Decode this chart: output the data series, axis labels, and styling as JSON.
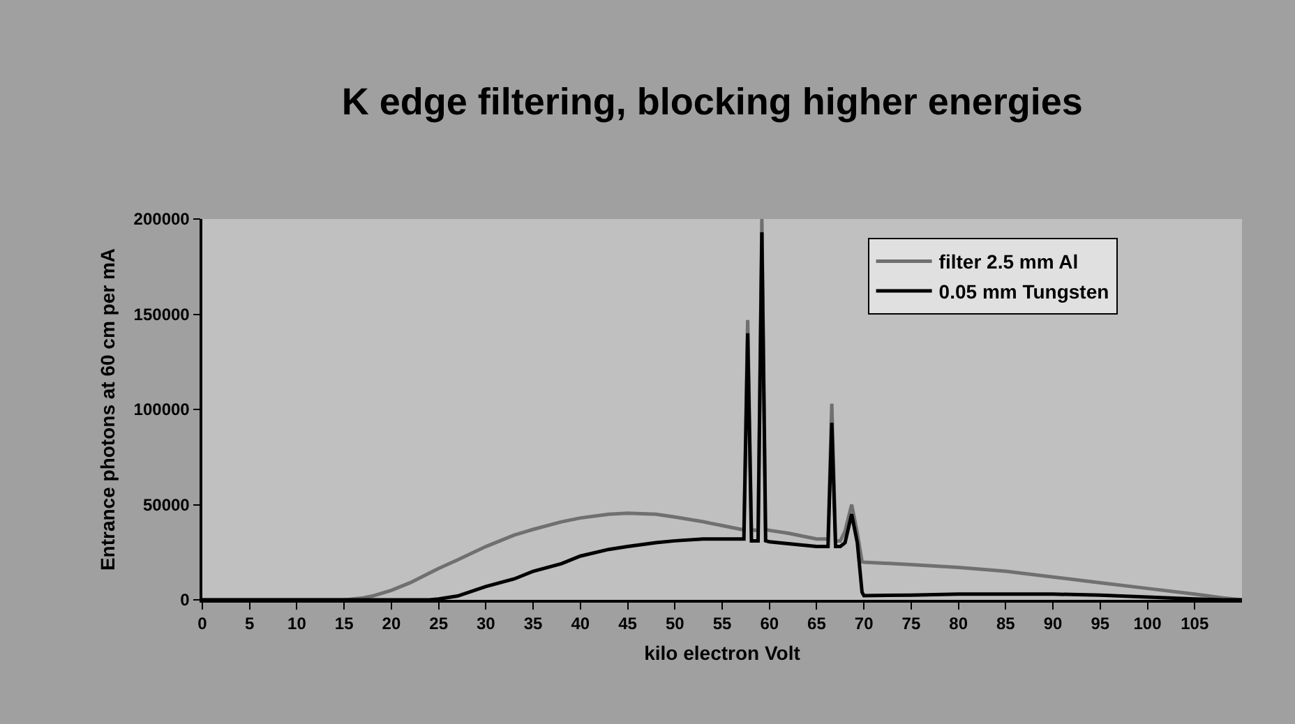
{
  "chart_data": {
    "type": "line",
    "title": "K edge filtering, blocking higher energies",
    "xlabel": "kilo electron Volt",
    "ylabel": "Entrance photons at 60 cm per mA",
    "x": [
      0,
      5,
      10,
      15,
      16,
      17,
      18,
      20,
      22,
      24,
      25,
      27,
      30,
      33,
      35,
      38,
      40,
      43,
      45,
      48,
      50,
      53,
      55,
      57,
      57.3,
      57.7,
      58.1,
      58.5,
      58.8,
      59.2,
      59.6,
      60,
      62,
      65,
      66.2,
      66.6,
      67,
      67.5,
      68,
      68.7,
      69.3,
      69.8,
      70,
      75,
      80,
      85,
      90,
      95,
      100,
      105,
      108,
      110
    ],
    "series": [
      {
        "name": "filter 2.5 mm Al",
        "color": "#707070",
        "values": [
          0,
          0,
          0,
          0,
          500,
          1000,
          2000,
          5000,
          9000,
          14000,
          16500,
          21000,
          28000,
          34000,
          37000,
          41000,
          43000,
          45000,
          45500,
          45000,
          43500,
          41000,
          39000,
          37000,
          37000,
          147000,
          37000,
          36500,
          37000,
          200000,
          37000,
          36500,
          35000,
          32000,
          32000,
          103000,
          31000,
          31000,
          36000,
          50000,
          35000,
          20000,
          19800,
          18500,
          17000,
          15000,
          12000,
          9000,
          6000,
          3000,
          1000,
          0
        ]
      },
      {
        "name": "0.05 mm Tungsten",
        "color": "#000000",
        "values": [
          0,
          0,
          0,
          0,
          0,
          0,
          0,
          0,
          0,
          0,
          500,
          2000,
          7000,
          11000,
          15000,
          19000,
          23000,
          26500,
          28000,
          30000,
          31000,
          32000,
          32000,
          32000,
          32000,
          140000,
          31000,
          31000,
          31000,
          193000,
          31000,
          30500,
          29500,
          28000,
          28000,
          93000,
          28000,
          28000,
          30000,
          45000,
          30000,
          4000,
          2200,
          2500,
          3000,
          3000,
          3000,
          2500,
          1500,
          500,
          0,
          0
        ]
      }
    ],
    "xlim": [
      0,
      110
    ],
    "xticks": [
      0,
      5,
      10,
      15,
      20,
      25,
      30,
      35,
      40,
      45,
      50,
      55,
      60,
      65,
      70,
      75,
      80,
      85,
      90,
      95,
      100,
      105
    ],
    "ylim": [
      0,
      200000
    ],
    "yticks": [
      0,
      50000,
      100000,
      150000,
      200000
    ],
    "grid": false,
    "legend": "top right",
    "marker": "none",
    "line_style": "solid"
  }
}
